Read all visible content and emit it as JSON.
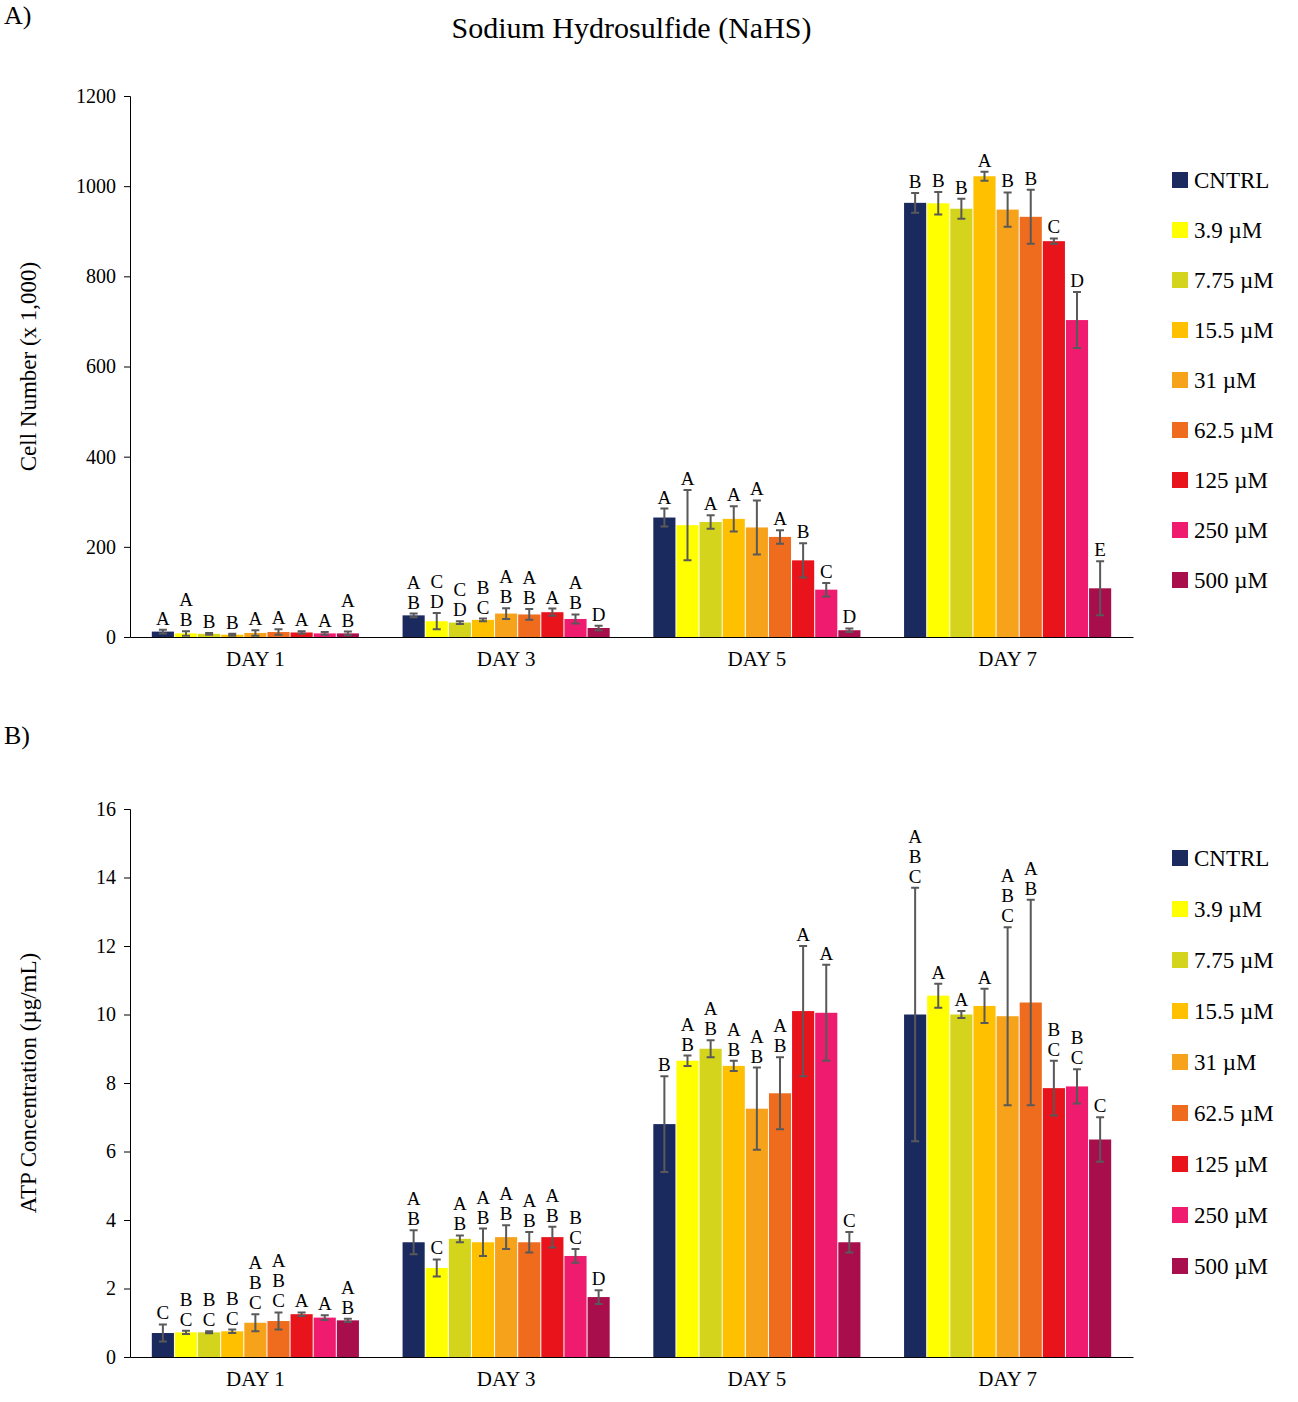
{
  "chart_data": [
    {
      "type": "bar",
      "panel_label": "A)",
      "title": "Sodium Hydrosulfide (NaHS)",
      "y_label": "Cell Number (x 1,000)",
      "categories": [
        "DAY 1",
        "DAY 3",
        "DAY 5",
        "DAY 7"
      ],
      "ylim": [
        0,
        1200
      ],
      "yticks": [
        0,
        200,
        400,
        600,
        800,
        1000,
        1200
      ],
      "grid": false,
      "legend": "right",
      "series": [
        {
          "name": "CNTRL",
          "color": "#1b2a5e",
          "values": [
            12,
            48,
            265,
            963
          ],
          "errors": [
            4,
            4,
            20,
            22
          ],
          "letters": [
            [
              "A"
            ],
            [
              "A",
              "B"
            ],
            [
              "A"
            ],
            [
              "B"
            ]
          ]
        },
        {
          "name": "3.9 µM",
          "color": "#ffff00",
          "values": [
            8,
            35,
            248,
            962
          ],
          "errors": [
            5,
            18,
            78,
            25
          ],
          "letters": [
            [
              "A",
              "B"
            ],
            [
              "C",
              "D"
            ],
            [
              "A"
            ],
            [
              "B"
            ]
          ]
        },
        {
          "name": "7.75 µM",
          "color": "#d4d41c",
          "values": [
            7,
            32,
            255,
            950
          ],
          "errors": [
            2,
            3,
            15,
            22
          ],
          "letters": [
            [
              "B"
            ],
            [
              "C",
              "D"
            ],
            [
              "A"
            ],
            [
              "B"
            ]
          ]
        },
        {
          "name": "15.5 µM",
          "color": "#ffc000",
          "values": [
            5,
            38,
            262,
            1022
          ],
          "errors": [
            2,
            3,
            28,
            10
          ],
          "letters": [
            [
              "B"
            ],
            [
              "B",
              "C"
            ],
            [
              "A"
            ],
            [
              "A"
            ]
          ]
        },
        {
          "name": "31 µM",
          "color": "#f7a21b",
          "values": [
            9,
            52,
            243,
            948
          ],
          "errors": [
            6,
            12,
            60,
            38
          ],
          "letters": [
            [
              "A"
            ],
            [
              "A",
              "B"
            ],
            [
              "A"
            ],
            [
              "B"
            ]
          ]
        },
        {
          "name": "62.5 µM",
          "color": "#ef6c1f",
          "values": [
            11,
            50,
            222,
            932
          ],
          "errors": [
            6,
            12,
            15,
            60
          ],
          "letters": [
            [
              "A"
            ],
            [
              "A",
              "B"
            ],
            [
              "A"
            ],
            [
              "B"
            ]
          ]
        },
        {
          "name": "125 µM",
          "color": "#e8131b",
          "values": [
            10,
            55,
            170,
            878
          ],
          "errors": [
            3,
            8,
            38,
            6
          ],
          "letters": [
            [
              "A"
            ],
            [
              "A"
            ],
            [
              "B"
            ],
            [
              "C"
            ]
          ]
        },
        {
          "name": "250 µM",
          "color": "#ee1b6f",
          "values": [
            8,
            40,
            105,
            703
          ],
          "errors": [
            3,
            10,
            15,
            62
          ],
          "letters": [
            [
              "A"
            ],
            [
              "A",
              "B"
            ],
            [
              "C"
            ],
            [
              "D"
            ]
          ]
        },
        {
          "name": "500 µM",
          "color": "#a80e4c",
          "values": [
            8,
            20,
            15,
            108
          ],
          "errors": [
            4,
            5,
            4,
            60
          ],
          "letters": [
            [
              "A",
              "B"
            ],
            [
              "D"
            ],
            [
              "D"
            ],
            [
              "E"
            ]
          ]
        }
      ]
    },
    {
      "type": "bar",
      "panel_label": "B)",
      "y_label": "ATP Concentration (µg/mL)",
      "categories": [
        "DAY 1",
        "DAY 3",
        "DAY 5",
        "DAY 7"
      ],
      "ylim": [
        0,
        16
      ],
      "yticks": [
        0,
        2,
        4,
        6,
        8,
        10,
        12,
        14,
        16
      ],
      "grid": false,
      "legend": "right",
      "series": [
        {
          "name": "CNTRL",
          "color": "#1b2a5e",
          "values": [
            0.7,
            3.35,
            6.8,
            10.0
          ],
          "errors": [
            0.25,
            0.35,
            1.4,
            3.7
          ],
          "letters": [
            [
              "C"
            ],
            [
              "A",
              "B"
            ],
            [
              "B"
            ],
            [
              "A",
              "B",
              "C"
            ]
          ]
        },
        {
          "name": "3.9 µM",
          "color": "#ffff00",
          "values": [
            0.72,
            2.6,
            8.65,
            10.55
          ],
          "errors": [
            0.05,
            0.25,
            0.15,
            0.35
          ],
          "letters": [
            [
              "B",
              "C"
            ],
            [
              "C"
            ],
            [
              "A",
              "B"
            ],
            [
              "A"
            ]
          ]
        },
        {
          "name": "7.75 µM",
          "color": "#d4d41c",
          "values": [
            0.72,
            3.45,
            9.0,
            10.0
          ],
          "errors": [
            0.03,
            0.1,
            0.25,
            0.1
          ],
          "letters": [
            [
              "B",
              "C"
            ],
            [
              "A",
              "B"
            ],
            [
              "A",
              "B"
            ],
            [
              "A"
            ]
          ]
        },
        {
          "name": "15.5 µM",
          "color": "#ffc000",
          "values": [
            0.75,
            3.35,
            8.5,
            10.25
          ],
          "errors": [
            0.05,
            0.4,
            0.15,
            0.5
          ],
          "letters": [
            [
              "B",
              "C"
            ],
            [
              "A",
              "B"
            ],
            [
              "A",
              "B"
            ],
            [
              "A"
            ]
          ]
        },
        {
          "name": "31 µM",
          "color": "#f7a21b",
          "values": [
            1.0,
            3.5,
            7.25,
            9.95
          ],
          "errors": [
            0.25,
            0.35,
            1.2,
            2.6
          ],
          "letters": [
            [
              "A",
              "B",
              "C"
            ],
            [
              "A",
              "B"
            ],
            [
              "A",
              "B"
            ],
            [
              "A",
              "B",
              "C"
            ]
          ]
        },
        {
          "name": "62.5 µM",
          "color": "#ef6c1f",
          "values": [
            1.05,
            3.35,
            7.7,
            10.35
          ],
          "errors": [
            0.25,
            0.3,
            1.05,
            3.0
          ],
          "letters": [
            [
              "A",
              "B",
              "C"
            ],
            [
              "A",
              "B"
            ],
            [
              "A",
              "B"
            ],
            [
              "A",
              "B"
            ]
          ]
        },
        {
          "name": "125 µM",
          "color": "#e8131b",
          "values": [
            1.25,
            3.5,
            10.1,
            7.85
          ],
          "errors": [
            0.05,
            0.3,
            1.9,
            0.8
          ],
          "letters": [
            [
              "A"
            ],
            [
              "A",
              "B"
            ],
            [
              "A"
            ],
            [
              "B",
              "C"
            ]
          ]
        },
        {
          "name": "250 µM",
          "color": "#ee1b6f",
          "values": [
            1.15,
            2.95,
            10.05,
            7.9
          ],
          "errors": [
            0.07,
            0.2,
            1.4,
            0.5
          ],
          "letters": [
            [
              "A"
            ],
            [
              "B",
              "C"
            ],
            [
              "A"
            ],
            [
              "B",
              "C"
            ]
          ]
        },
        {
          "name": "500 µM",
          "color": "#a80e4c",
          "values": [
            1.07,
            1.75,
            3.35,
            6.35
          ],
          "errors": [
            0.05,
            0.2,
            0.3,
            0.65
          ],
          "letters": [
            [
              "A",
              "B"
            ],
            [
              "D"
            ],
            [
              "C"
            ],
            [
              "C"
            ]
          ]
        }
      ]
    }
  ]
}
